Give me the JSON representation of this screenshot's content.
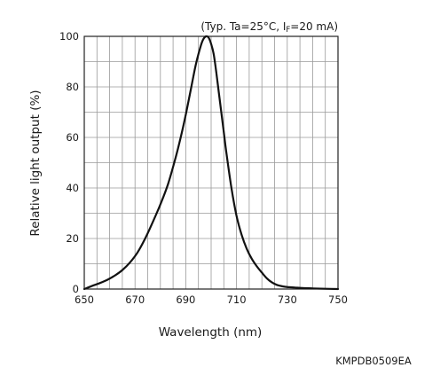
{
  "chart_data": {
    "type": "line",
    "condition": "(Typ. Ta=25°C, IF=20 mA)",
    "condition_parts": {
      "prefix": "(Typ. Ta=25°C, I",
      "subscript": "F",
      "suffix": "=20 mA)"
    },
    "xlabel": "Wavelength (nm)",
    "ylabel": "Relative light output (%)",
    "figure_code": "KMPDB0509EA",
    "xlim": [
      650,
      750
    ],
    "ylim": [
      0,
      100
    ],
    "xticks": [
      650,
      670,
      690,
      710,
      730,
      750
    ],
    "yticks": [
      0,
      20,
      40,
      60,
      80,
      100
    ],
    "x_grid_step": 5,
    "y_grid_step": 10,
    "grid": true,
    "series": [
      {
        "x": [
          650,
          653,
          656,
          659,
          662,
          665,
          668,
          671,
          674,
          677,
          680,
          683,
          686,
          688,
          690,
          692,
          694,
          696,
          697,
          698,
          699,
          700,
          701,
          702,
          703,
          704,
          705,
          706,
          708,
          710,
          712,
          714,
          716,
          718,
          720,
          722,
          724,
          726,
          728,
          730,
          733,
          736,
          740,
          745,
          750
        ],
        "y": [
          0,
          1.2,
          2.3,
          3.6,
          5.3,
          7.5,
          10.5,
          14.5,
          20,
          26.5,
          33.5,
          41.5,
          52,
          60,
          69,
          79,
          89,
          96.5,
          99,
          100,
          99.5,
          97,
          93,
          86,
          78,
          70,
          62,
          54,
          40,
          29,
          21.5,
          16,
          12,
          9,
          6.5,
          4.2,
          2.6,
          1.6,
          1.1,
          0.8,
          0.6,
          0.4,
          0.25,
          0.1,
          0
        ]
      }
    ]
  }
}
